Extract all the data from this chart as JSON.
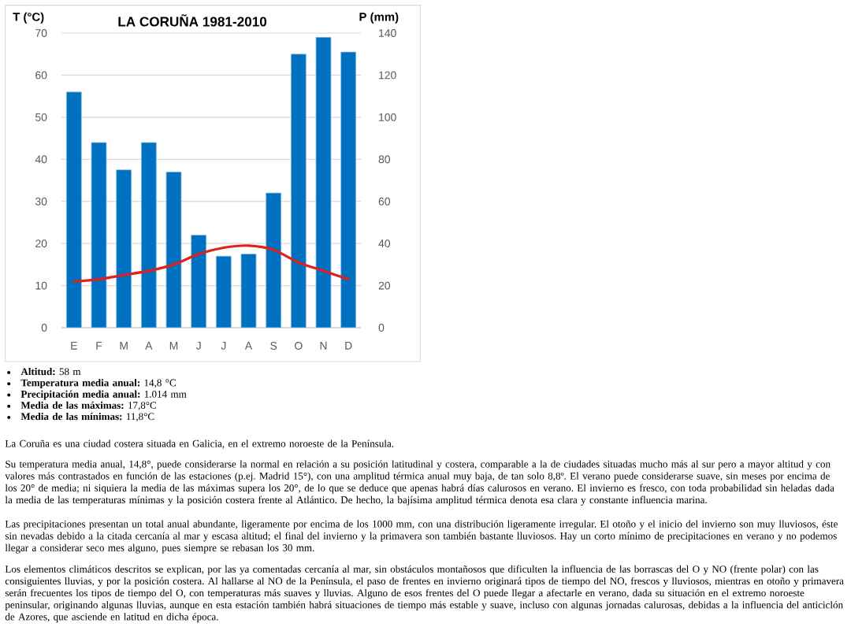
{
  "chart_data": {
    "type": "bar",
    "title": "LA CORUÑA 1981-2010",
    "ylabel": "T (°C)",
    "y2label": "P (mm)",
    "categories": [
      "E",
      "F",
      "M",
      "A",
      "M",
      "J",
      "J",
      "A",
      "S",
      "O",
      "N",
      "D"
    ],
    "series": [
      {
        "axis": "y2",
        "color": "#0070c0",
        "values": [
          112,
          88,
          75,
          88,
          74,
          44,
          34,
          35,
          64,
          130,
          138,
          131
        ]
      },
      {
        "type": "line",
        "axis": "y",
        "color": "#e0201c",
        "values": [
          11,
          11.5,
          12.5,
          13.5,
          15,
          17.5,
          19,
          19.5,
          18.5,
          15.5,
          13.5,
          11.5
        ]
      }
    ],
    "ylim": [
      0,
      70
    ],
    "yticks": [
      0,
      10,
      20,
      30,
      40,
      50,
      60,
      70
    ],
    "y2lim": [
      0,
      140
    ],
    "y2ticks": [
      0,
      20,
      40,
      60,
      80,
      100,
      120,
      140
    ],
    "grid": "y",
    "annotations": [
      "**Altitud:** 58 m",
      "**Temperatura media anual:** 14,8 °C",
      "**Precipitación media anual:** 1.014 mm",
      "**Media de las máximas:** 17,8°C",
      "**Media de las mínimas:** 11,8°C",
      "La Coruña es una ciudad costera situada en Galicia, en el extremo noroeste de la Península.",
      "Su temperatura media anual, 14,8°, puede considerarse la normal en relación a su posición latitudinal y costera, comparable a la de ciudades situadas mucho más al sur pero a mayor altitud y con valores más contrastados en función de las estaciones (p.ej. Madrid 15°), con una amplitud térmica anual muy baja, de tan solo 8,8º. El verano puede considerarse suave, sin meses por encima de los 20° de media; ni siquiera la media de las máximas supera los 20°, de lo que se deduce que apenas habrá días calurosos en verano. El invierno es fresco, con toda probabilidad sin heladas dada la media de las temperaturas mínimas y la posición costera frente al Atlántico. De hecho, la bajísima amplitud térmica denota esa clara y constante influencia marina.",
      "Las precipitaciones presentan un total anual abundante, ligeramente por encima de los 1000 mm, con una distribución ligeramente irregular. El otoño y el inicio del invierno son muy lluviosos, éste sin nevadas debido a la citada cercanía al mar y escasa altitud; el final del invierno y la primavera son también bastante lluviosos. Hay un corto mínimo de precipitaciones en verano y no podemos llegar a considerar seco mes alguno, pues siempre se rebasan los 30 mm.",
      "Los elementos climáticos descritos se explican, por las ya comentadas cercanía al mar, sin obstáculos montañosos que dificulten la influencia de las borrascas del O y NO (frente polar) con las consiguientes lluvias, y por la posición costera. Al hallarse al NO de la Península, el paso de frentes en invierno originará tipos de tiempo del NO, frescos y lluviosos, mientras en otoño y primavera serán frecuentes los tipos de tiempo del O, con temperaturas más suaves y lluvias. Alguno de esos frentes del O puede llegar a afectarle en verano, dada su situación en el extremo noroeste peninsular, originando algunas lluvias, aunque en esta estación también habrá situaciones de tiempo más estable y suave, incluso con algunas jornadas calurosas, debidas a la influencia del anticiclón de Azores, que asciende en latitud en dicha época."
    ]
  }
}
